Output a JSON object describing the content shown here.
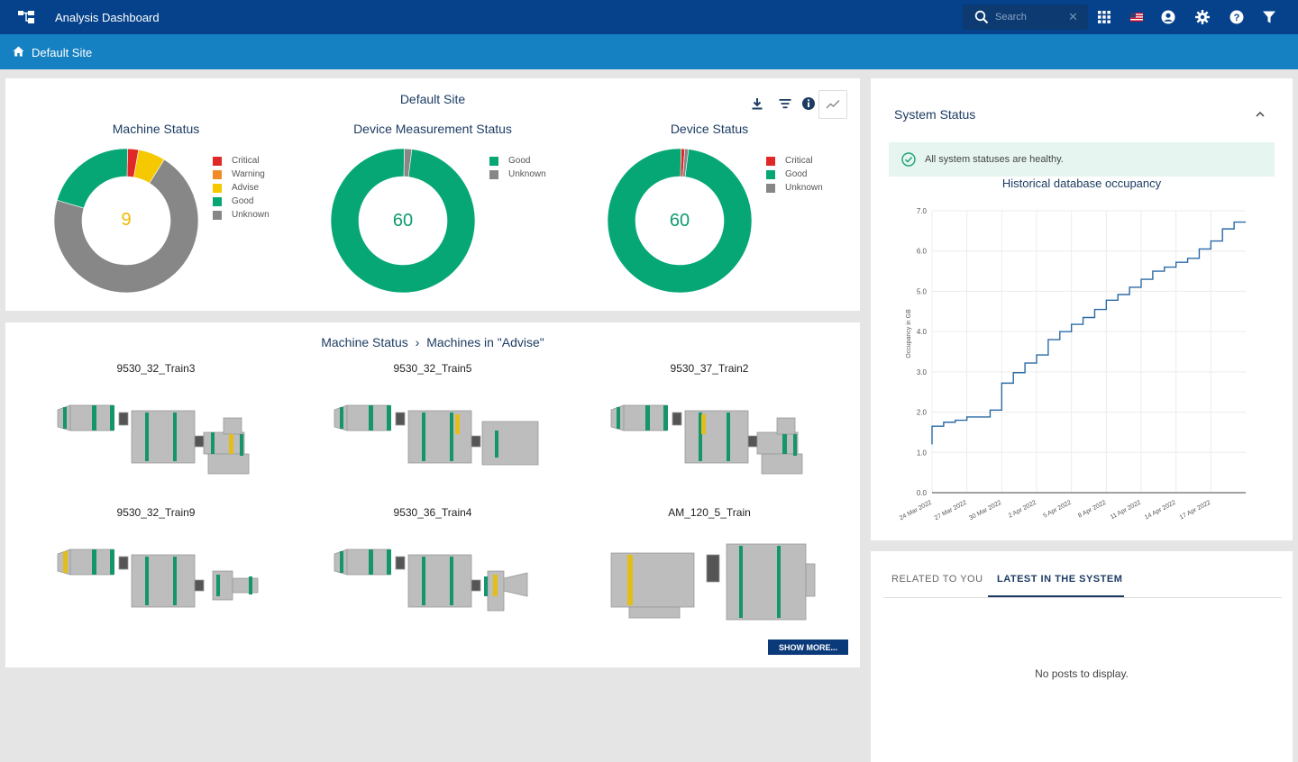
{
  "header": {
    "app_title": "Analysis Dashboard",
    "search_placeholder": "Search",
    "icons": [
      "app-logo-icon",
      "search-icon",
      "clear-icon",
      "apps-grid-icon",
      "us-flag-icon",
      "user-icon",
      "gear-icon",
      "help-icon",
      "filter-icon"
    ]
  },
  "site_bar": {
    "site_name": "Default Site",
    "icon": "home-icon"
  },
  "overview": {
    "title": "Default Site",
    "toolbar_icons": [
      "download-icon",
      "sort-icon",
      "info-icon",
      "trend-chart-icon"
    ],
    "charts": [
      {
        "title": "Machine Status",
        "center_value": "9",
        "center_color": "#f0b800",
        "legend": [
          {
            "label": "Critical",
            "color": "#e02828"
          },
          {
            "label": "Warning",
            "color": "#f08c28"
          },
          {
            "label": "Advise",
            "color": "#f5c800"
          },
          {
            "label": "Good",
            "color": "#06a775"
          },
          {
            "label": "Unknown",
            "color": "#878787"
          }
        ],
        "segments": [
          {
            "label": "Critical",
            "value": 2,
            "color": "#e02828"
          },
          {
            "label": "Advise",
            "value": 5,
            "color": "#f5c800"
          },
          {
            "label": "Unknown",
            "value": 58,
            "color": "#878787"
          },
          {
            "label": "Good",
            "value": 17,
            "color": "#06a775"
          }
        ]
      },
      {
        "title": "Device Measurement Status",
        "center_value": "60",
        "center_color": "#0d9b6f",
        "legend": [
          {
            "label": "Good",
            "color": "#06a775"
          },
          {
            "label": "Unknown",
            "color": "#878787"
          }
        ],
        "segments": [
          {
            "label": "Unknown",
            "value": 1,
            "color": "#878787"
          },
          {
            "label": "Good",
            "value": 59,
            "color": "#06a775"
          }
        ]
      },
      {
        "title": "Device Status",
        "center_value": "60",
        "center_color": "#0d9b6f",
        "legend": [
          {
            "label": "Critical",
            "color": "#e02828"
          },
          {
            "label": "Good",
            "color": "#06a775"
          },
          {
            "label": "Unknown",
            "color": "#878787"
          }
        ],
        "segments": [
          {
            "label": "Critical",
            "value": 0.5,
            "color": "#e02828"
          },
          {
            "label": "Unknown",
            "value": 0.5,
            "color": "#878787"
          },
          {
            "label": "Good",
            "value": 59,
            "color": "#06a775"
          }
        ]
      }
    ]
  },
  "machines": {
    "breadcrumb_root": "Machine Status",
    "breadcrumb_current": "Machines in \"Advise\"",
    "items": [
      "9530_32_Train3",
      "9530_32_Train5",
      "9530_37_Train2",
      "9530_32_Train9",
      "9530_36_Train4",
      "AM_120_5_Train"
    ],
    "show_more": "SHOW MORE..."
  },
  "system_status": {
    "title": "System Status",
    "healthy_message": "All system statuses are healthy.",
    "chart_title": "Historical database occupancy"
  },
  "chart_data": {
    "type": "line",
    "title": "Historical database occupancy",
    "xlabel": "",
    "ylabel": "Occupancy in GB",
    "ylim": [
      0,
      7
    ],
    "grid": true,
    "yticks": [
      "0.0",
      "1.0",
      "2.0",
      "3.0",
      "4.0",
      "5.0",
      "6.0",
      "7.0"
    ],
    "xticks": [
      "24 Mar 2022",
      "27 Mar 2022",
      "30 Mar 2022",
      "2 Apr 2022",
      "5 Apr 2022",
      "8 Apr 2022",
      "11 Apr 2022",
      "14 Apr 2022",
      "17 Apr 2022"
    ],
    "x": [
      "24 Mar 2022",
      "24 Mar 2022",
      "25 Mar 2022",
      "26 Mar 2022",
      "27 Mar 2022",
      "28 Mar 2022",
      "29 Mar 2022",
      "30 Mar 2022",
      "31 Mar 2022",
      "1 Apr 2022",
      "2 Apr 2022",
      "3 Apr 2022",
      "4 Apr 2022",
      "5 Apr 2022",
      "6 Apr 2022",
      "7 Apr 2022",
      "8 Apr 2022",
      "9 Apr 2022",
      "10 Apr 2022",
      "11 Apr 2022",
      "12 Apr 2022",
      "13 Apr 2022",
      "14 Apr 2022",
      "15 Apr 2022",
      "16 Apr 2022",
      "17 Apr 2022",
      "18 Apr 2022",
      "19 Apr 2022"
    ],
    "series": [
      {
        "values": [
          1.2,
          1.65,
          1.75,
          1.8,
          1.88,
          1.88,
          2.05,
          2.72,
          2.98,
          3.22,
          3.42,
          3.8,
          4.0,
          4.18,
          4.35,
          4.55,
          4.78,
          4.92,
          5.1,
          5.3,
          5.5,
          5.6,
          5.72,
          5.82,
          6.05,
          6.25,
          6.55,
          6.72
        ]
      }
    ]
  }
}
